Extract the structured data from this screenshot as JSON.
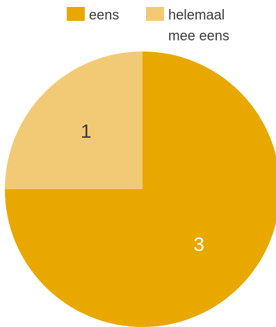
{
  "chart_data": {
    "type": "pie",
    "start_angle_deg": 0,
    "direction": "clockwise",
    "legend_position": "top",
    "slices": [
      {
        "label": "eens",
        "value": 3,
        "color": "#E8A800",
        "label_color": "#FFFFFF"
      },
      {
        "label": "helemaal mee eens",
        "value": 1,
        "color": "#F2CA76",
        "label_color": "#3A3A3A"
      }
    ],
    "legend": [
      {
        "lines": [
          "eens"
        ],
        "color": "#E8A800"
      },
      {
        "lines": [
          "helemaal",
          "mee eens"
        ],
        "color": "#F2CA76"
      }
    ]
  }
}
